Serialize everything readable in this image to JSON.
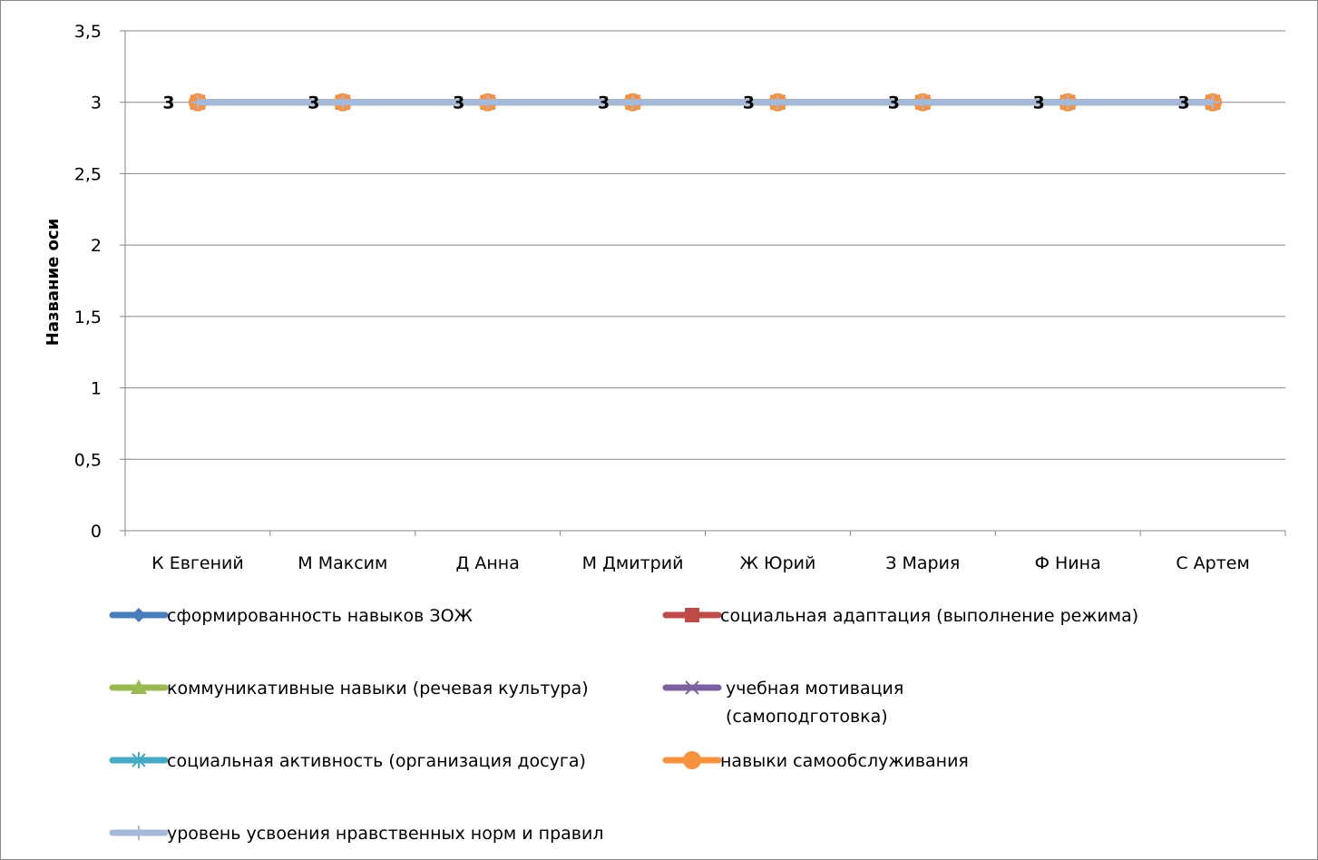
{
  "chart_data": {
    "type": "line",
    "title": "",
    "xlabel": "",
    "ylabel": "Название оси",
    "ylim": [
      0,
      3.5
    ],
    "yticks": [
      "0",
      "0,5",
      "1",
      "1,5",
      "2",
      "2,5",
      "3",
      "3,5"
    ],
    "categories": [
      "К Евгений",
      "М Максим",
      "Д Анна",
      "М Дмитрий",
      "Ж Юрий",
      "З Мария",
      "Ф Нина",
      "С Артем"
    ],
    "grid": true,
    "legend_position": "bottom",
    "data_labels": [
      "3",
      "3",
      "3",
      "3",
      "3",
      "3",
      "3",
      "3"
    ],
    "series": [
      {
        "name": "сформированность навыков ЗОЖ",
        "values": [
          3,
          3,
          3,
          3,
          3,
          3,
          3,
          3
        ],
        "color": "#4a7ebb",
        "marker": "diamond"
      },
      {
        "name": "социальная адаптация (выполнение режима)",
        "values": [
          3,
          3,
          3,
          3,
          3,
          3,
          3,
          3
        ],
        "color": "#be4b48",
        "marker": "square"
      },
      {
        "name": "коммуникативные   навыки (речевая культура)",
        "values": [
          3,
          3,
          3,
          3,
          3,
          3,
          3,
          3
        ],
        "color": "#98b954",
        "marker": "triangle"
      },
      {
        "name": "учебная мотивация (самоподготовка)",
        "name_lines": [
          "учебная мотивация",
          "(самоподготовка)"
        ],
        "values": [
          3,
          3,
          3,
          3,
          3,
          3,
          3,
          3
        ],
        "color": "#7d60a0",
        "marker": "x"
      },
      {
        "name": "социальная активность (организация досуга)",
        "values": [
          3,
          3,
          3,
          3,
          3,
          3,
          3,
          3
        ],
        "color": "#46aac5",
        "marker": "star"
      },
      {
        "name": " навыки самообслуживания",
        "values": [
          3,
          3,
          3,
          3,
          3,
          3,
          3,
          3
        ],
        "color": "#f69240",
        "marker": "circle"
      },
      {
        "name": "уровень усвоения нравственных норм и правил",
        "values": [
          3,
          3,
          3,
          3,
          3,
          3,
          3,
          3
        ],
        "color": "#a5b9d8",
        "marker": "plus"
      }
    ]
  }
}
